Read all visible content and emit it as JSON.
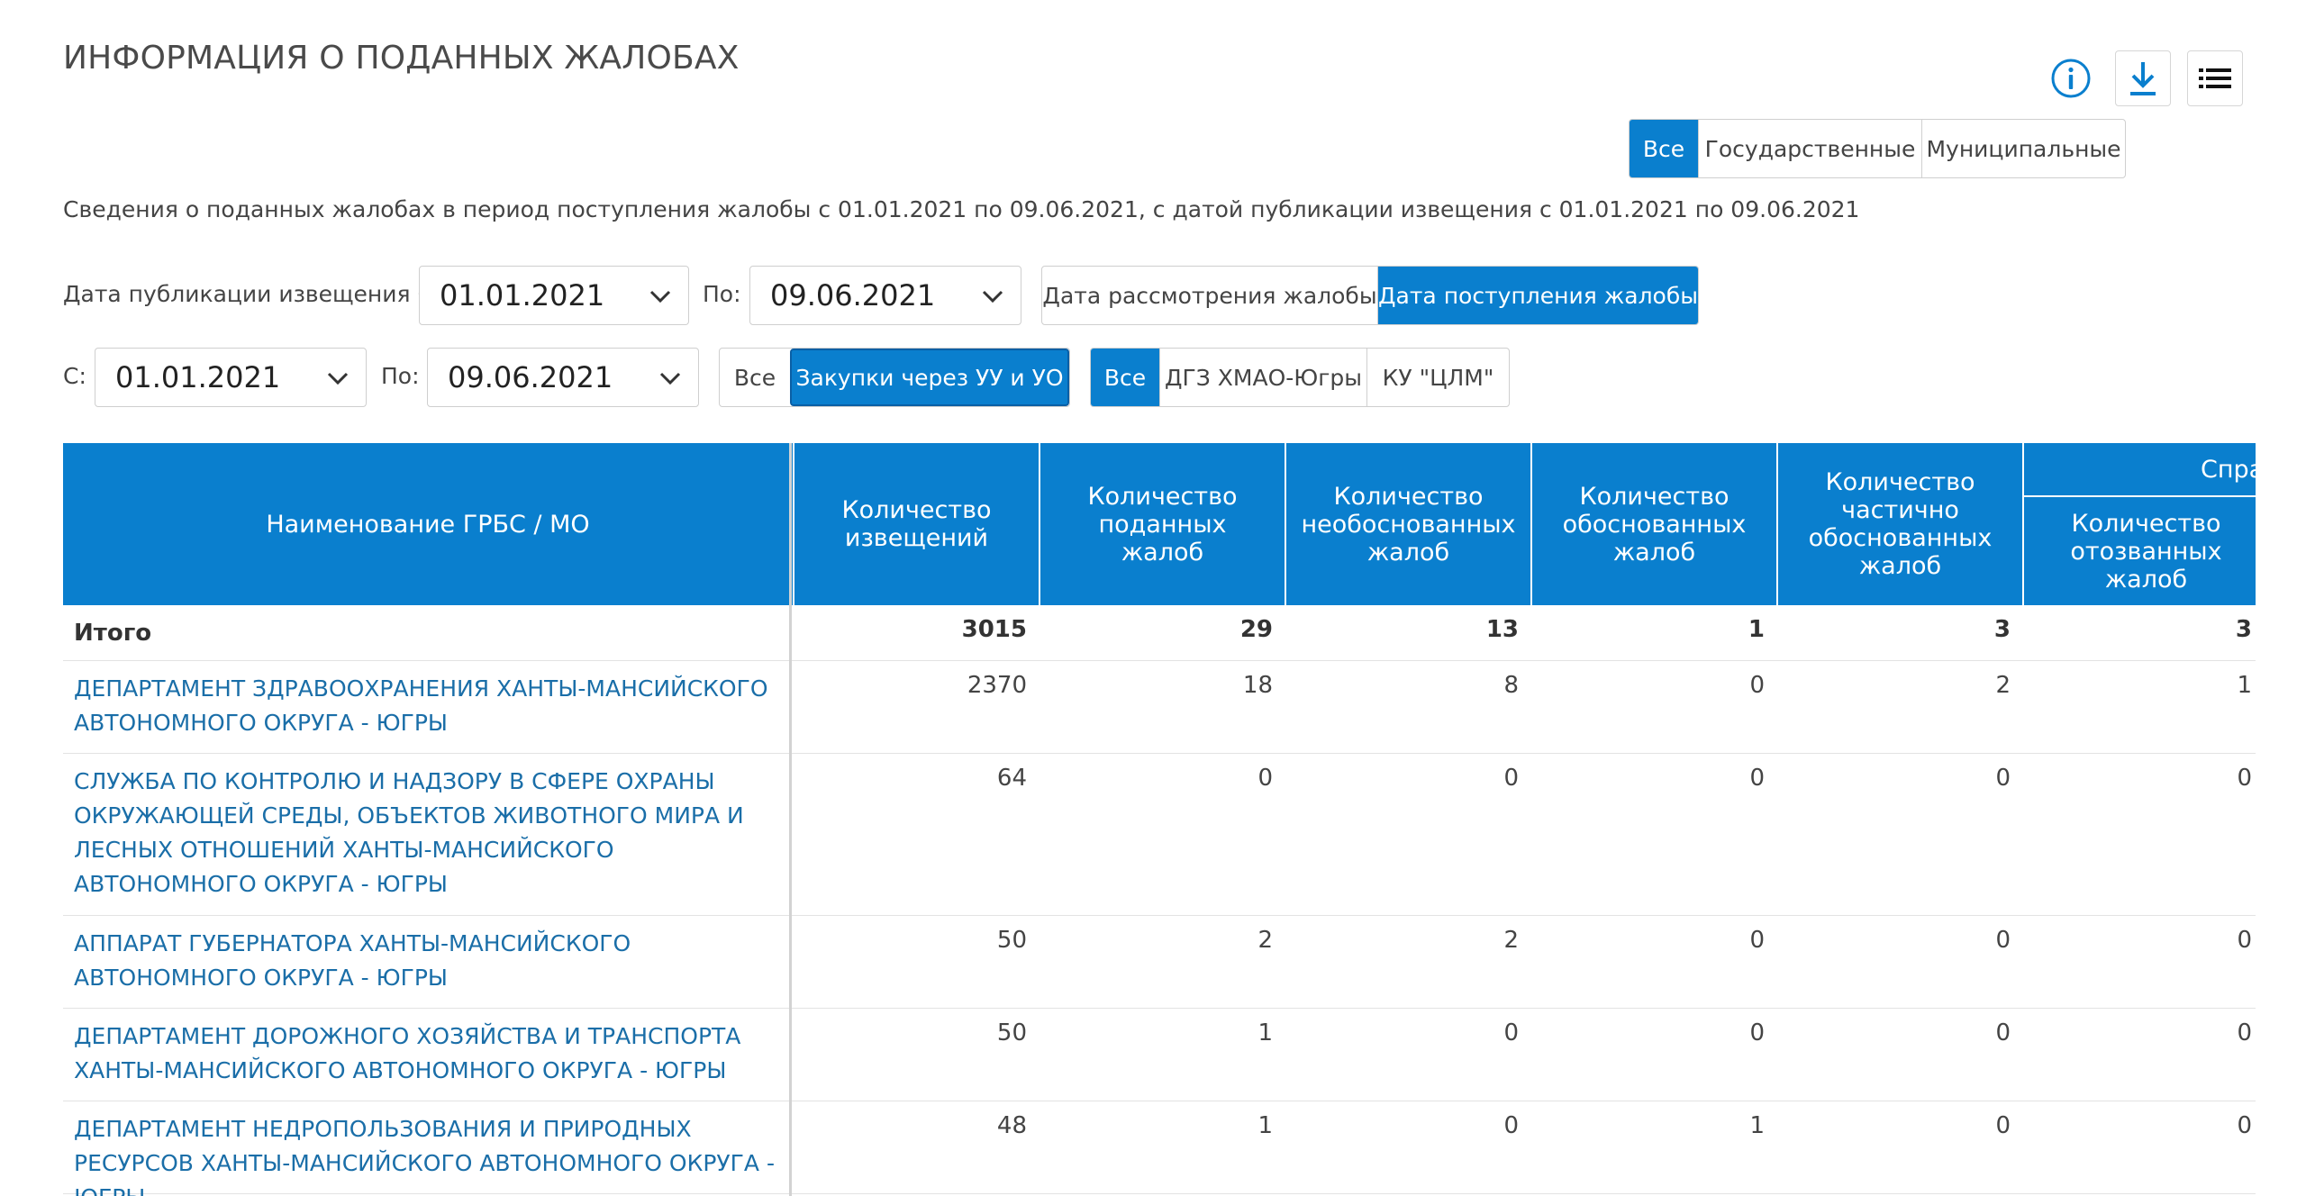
{
  "page": {
    "title": "ИНФОРМАЦИЯ О ПОДАННЫХ ЖАЛОБАХ"
  },
  "toolbar": {
    "info_icon": "info-icon",
    "download_icon": "download-icon",
    "list_icon": "list-icon"
  },
  "owner_filter": {
    "options": [
      "Все",
      "Государственные",
      "Муниципальные"
    ],
    "selected": "Все"
  },
  "description": "Сведения о поданных жалобах в период поступления жалобы с 01.01.2021 по 09.06.2021, с датой публикации извещения с 01.01.2021 по 09.06.2021",
  "publication_filter": {
    "from_label": "Дата публикации извещения С:",
    "from_value": "01.01.2021",
    "to_label": "По:",
    "to_value": "09.06.2021"
  },
  "date_type_filter": {
    "options": [
      "Дата рассмотрения жалобы",
      "Дата поступления жалобы"
    ],
    "selected": "Дата поступления жалобы"
  },
  "period_filter": {
    "from_label": "С:",
    "from_value": "01.01.2021",
    "to_label": "По:",
    "to_value": "09.06.2021"
  },
  "procurement_filter": {
    "options": [
      "Все",
      "Закупки через УУ и УО"
    ],
    "selected": "Закупки через УУ и УО"
  },
  "customer_filter": {
    "options": [
      "Все",
      "ДГЗ ХМАО-Югры",
      "КУ \"ЦЛМ\""
    ],
    "selected": "Все"
  },
  "table": {
    "columns": [
      "Наименование ГРБС / МО",
      "Количество извещений",
      "Количество поданных жалоб",
      "Количество необоснованных жалоб",
      "Количество обоснованных жалоб",
      "Количество частично обоснованных жалоб",
      "Количество отозванных жалоб"
    ],
    "group_header": "Справ",
    "total": {
      "name": "Итого",
      "values": [
        "3015",
        "29",
        "13",
        "1",
        "3",
        "3"
      ]
    },
    "rows": [
      {
        "name": "ДЕПАРТАМЕНТ ЗДРАВООХРАНЕНИЯ ХАНТЫ-МАНСИЙСКОГО АВТОНОМНОГО ОКРУГА - ЮГРЫ",
        "values": [
          "2370",
          "18",
          "8",
          "0",
          "2",
          "1"
        ]
      },
      {
        "name": "СЛУЖБА ПО КОНТРОЛЮ И НАДЗОРУ В СФЕРЕ ОХРАНЫ ОКРУЖАЮЩЕЙ СРЕДЫ, ОБЪЕКТОВ ЖИВОТНОГО МИРА И ЛЕСНЫХ ОТНОШЕНИЙ ХАНТЫ-МАНСИЙСКОГО АВТОНОМНОГО ОКРУГА - ЮГРЫ",
        "values": [
          "64",
          "0",
          "0",
          "0",
          "0",
          "0"
        ]
      },
      {
        "name": "АППАРАТ ГУБЕРНАТОРА ХАНТЫ-МАНСИЙСКОГО АВТОНОМНОГО ОКРУГА - ЮГРЫ",
        "values": [
          "50",
          "2",
          "2",
          "0",
          "0",
          "0"
        ]
      },
      {
        "name": "ДЕПАРТАМЕНТ ДОРОЖНОГО ХОЗЯЙСТВА И ТРАНСПОРТА ХАНТЫ-МАНСИЙСКОГО АВТОНОМНОГО ОКРУГА - ЮГРЫ",
        "values": [
          "50",
          "1",
          "0",
          "0",
          "0",
          "0"
        ]
      },
      {
        "name": "ДЕПАРТАМЕНТ НЕДРОПОЛЬЗОВАНИЯ И ПРИРОДНЫХ РЕСУРСОВ ХАНТЫ-МАНСИЙСКОГО АВТОНОМНОГО ОКРУГА - ЮГРЫ",
        "values": [
          "48",
          "1",
          "0",
          "1",
          "0",
          "0"
        ]
      }
    ]
  },
  "colors": {
    "accent": "#0a7fce",
    "link": "#1a6ea8"
  }
}
